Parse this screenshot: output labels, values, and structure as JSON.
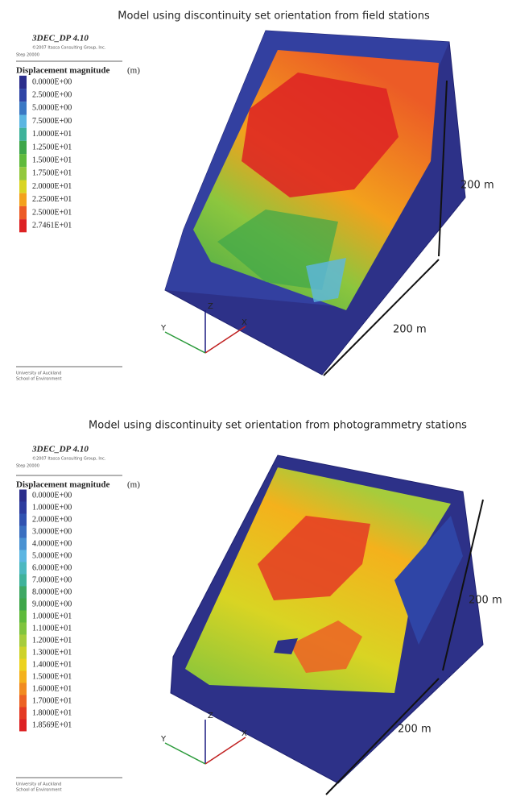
{
  "panels": [
    {
      "title": "Model using discontinuity set orientation from field stations",
      "logo": "3DEC_DP 4.10",
      "copyright": "©2007 Itasca Consulting Group, Inc.",
      "step": "Step 20000",
      "legend_title": "Displacement magnitude",
      "legend_unit": "(m)",
      "legend": [
        {
          "label": "0.0000E+00",
          "color": "#2b2e8c"
        },
        {
          "label": "2.5000E+00",
          "color": "#2f45a6"
        },
        {
          "label": "5.0000E+00",
          "color": "#3a78c4"
        },
        {
          "label": "7.5000E+00",
          "color": "#5cb6e2"
        },
        {
          "label": "1.0000E+01",
          "color": "#3fb29a"
        },
        {
          "label": "1.2500E+01",
          "color": "#3ea64a"
        },
        {
          "label": "1.5000E+01",
          "color": "#5fba3c"
        },
        {
          "label": "1.7500E+01",
          "color": "#93c83e"
        },
        {
          "label": "2.0000E+01",
          "color": "#d9d423"
        },
        {
          "label": "2.2500E+01",
          "color": "#f3a11c"
        },
        {
          "label": "2.5000E+01",
          "color": "#ec5b26"
        },
        {
          "label": "2.7461E+01",
          "color": "#dd2123"
        }
      ],
      "dimension_height": "200 m",
      "dimension_width": "200 m",
      "axes": [
        "Z",
        "Y",
        "X"
      ],
      "footer": [
        "University of Auckland",
        "School of Environment"
      ]
    },
    {
      "title": "Model using discontinuity set orientation from photogrammetry stations",
      "logo": "3DEC_DP 4.10",
      "copyright": "©2007 Itasca Consulting Group, Inc.",
      "step": "Step 20000",
      "legend_title": "Displacement magnitude",
      "legend_unit": "(m)",
      "legend": [
        {
          "label": "0.0000E+00",
          "color": "#2b2e8c"
        },
        {
          "label": "1.0000E+00",
          "color": "#2d3c9e"
        },
        {
          "label": "2.0000E+00",
          "color": "#3052b0"
        },
        {
          "label": "3.0000E+00",
          "color": "#3a6fc0"
        },
        {
          "label": "4.0000E+00",
          "color": "#4a92d2"
        },
        {
          "label": "5.0000E+00",
          "color": "#5cb6e2"
        },
        {
          "label": "6.0000E+00",
          "color": "#4cb8c0"
        },
        {
          "label": "7.0000E+00",
          "color": "#3fb29a"
        },
        {
          "label": "8.0000E+00",
          "color": "#3ea864"
        },
        {
          "label": "9.0000E+00",
          "color": "#3ea64a"
        },
        {
          "label": "1.0000E+01",
          "color": "#5fba3c"
        },
        {
          "label": "1.1000E+01",
          "color": "#80c43e"
        },
        {
          "label": "1.2000E+01",
          "color": "#a6cc3c"
        },
        {
          "label": "1.3000E+01",
          "color": "#cdd22a"
        },
        {
          "label": "1.4000E+01",
          "color": "#ecd21e"
        },
        {
          "label": "1.5000E+01",
          "color": "#f4b11c"
        },
        {
          "label": "1.6000E+01",
          "color": "#f18b20"
        },
        {
          "label": "1.7000E+01",
          "color": "#ec6224"
        },
        {
          "label": "1.8000E+01",
          "color": "#e43a24"
        },
        {
          "label": "1.8569E+01",
          "color": "#dd2123"
        }
      ],
      "dimension_height": "200 m",
      "dimension_width": "200 m",
      "axes": [
        "Z",
        "Y",
        "X"
      ],
      "footer": [
        "University of Auckland",
        "School of Environment"
      ]
    }
  ]
}
